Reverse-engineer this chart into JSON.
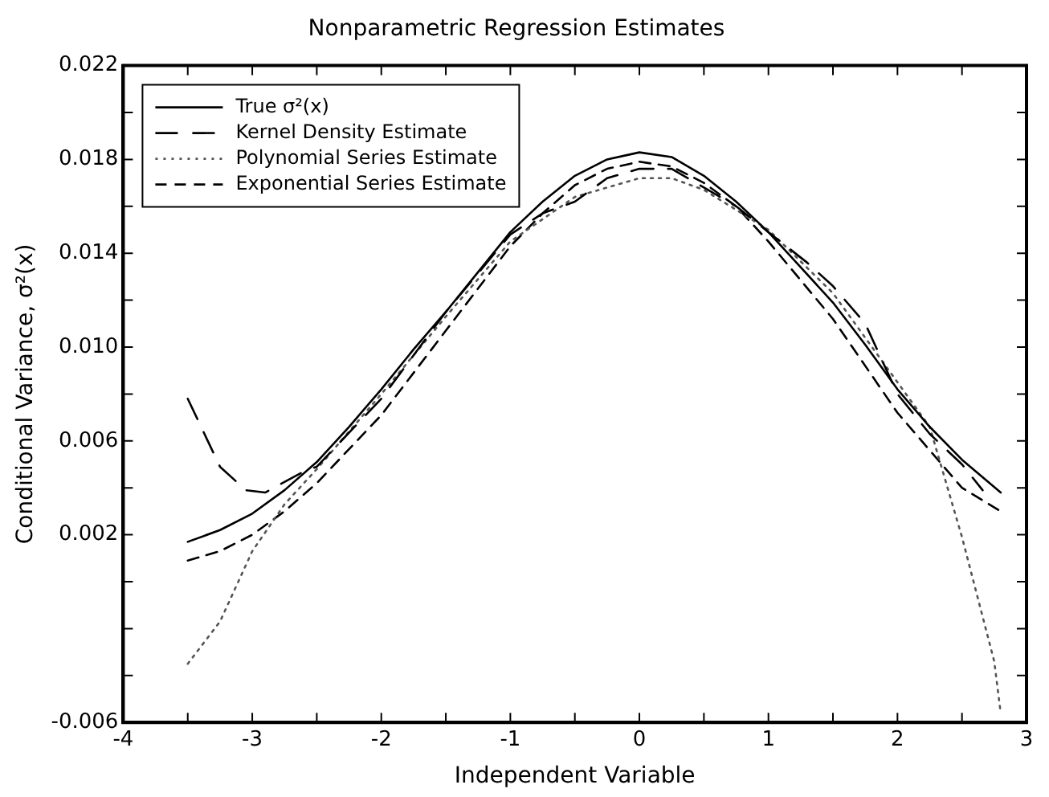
{
  "chart_data": {
    "type": "line",
    "title": "Nonparametric Regression Estimates",
    "xlabel": "Independent Variable",
    "ylabel": "Conditional Variance, σ²(x)",
    "xlim": [
      -4,
      3
    ],
    "xticks": [
      -4,
      {
        "value": -3.5,
        "label": null
      },
      -3,
      {
        "value": -2.5,
        "label": null
      },
      -2,
      {
        "value": -1.5,
        "label": null
      },
      -1,
      {
        "value": -0.5,
        "label": null
      },
      0,
      {
        "value": 0.5,
        "label": null
      },
      1,
      {
        "value": 1.5,
        "label": null
      },
      2,
      {
        "value": 2.5,
        "label": null
      },
      3
    ],
    "ylim": [
      -0.006,
      0.022
    ],
    "yticks": [
      -0.006,
      {
        "value": -0.004,
        "label": null
      },
      {
        "value": -0.002,
        "label": null
      },
      {
        "value": 0,
        "label": null
      },
      0.002,
      {
        "value": 0.004,
        "label": null
      },
      0.006,
      {
        "value": 0.008,
        "label": null
      },
      {
        "value": 0.01,
        "label": "0.010"
      },
      {
        "value": 0.012,
        "label": null
      },
      0.014,
      {
        "value": 0.016,
        "label": null
      },
      0.018,
      {
        "value": 0.02,
        "label": null
      },
      0.022
    ],
    "grid": false,
    "legend": "top left",
    "marker": "none",
    "series": [
      {
        "name": "True σ²(x)",
        "color": "#000000",
        "line_style": "solid",
        "x": [
          -3.5,
          -3.25,
          -3,
          -2.75,
          -2.5,
          -2.25,
          -2,
          -1.75,
          -1.5,
          -1.25,
          -1,
          -0.75,
          -0.5,
          -0.25,
          0,
          0.25,
          0.5,
          0.75,
          1,
          1.25,
          1.5,
          1.75,
          2,
          2.25,
          2.5,
          2.8
        ],
        "values": [
          0.0017,
          0.0022,
          0.0029,
          0.0039,
          0.0051,
          0.0066,
          0.0082,
          0.0099,
          0.0115,
          0.0132,
          0.0149,
          0.0162,
          0.0173,
          0.018,
          0.0183,
          0.0181,
          0.0173,
          0.0162,
          0.0149,
          0.0134,
          0.0119,
          0.0101,
          0.0082,
          0.0066,
          0.0052,
          0.0038
        ]
      },
      {
        "name": "Kernel Density Estimate",
        "color": "#000000",
        "line_style": "dashed",
        "x": [
          -3.5,
          -3.25,
          -3.05,
          -2.9,
          -2.6,
          -2.5,
          -2,
          -1.5,
          -1,
          -0.75,
          -0.5,
          -0.25,
          0,
          0.25,
          0.5,
          0.75,
          1,
          1.3,
          1.5,
          1.75,
          1.9,
          2,
          2.25,
          2.5,
          2.66
        ],
        "values": [
          0.0078,
          0.0049,
          0.0039,
          0.0038,
          0.0047,
          0.0049,
          0.0078,
          0.0115,
          0.0148,
          0.0157,
          0.0162,
          0.0172,
          0.0176,
          0.0176,
          0.0168,
          0.016,
          0.0149,
          0.0136,
          0.0126,
          0.011,
          0.0092,
          0.008,
          0.0063,
          0.005,
          0.0039
        ]
      },
      {
        "name": "Polynomial Series Estimate",
        "color": "#555555",
        "line_style": "dotted",
        "x": [
          -3.5,
          -3.25,
          -3,
          -2.75,
          -2.5,
          -2,
          -1.5,
          -1,
          -0.5,
          0,
          0.25,
          0.5,
          1,
          1.5,
          2,
          2.25,
          2.5,
          2.75,
          2.8
        ],
        "values": [
          -0.0035,
          -0.0017,
          0.0013,
          0.0033,
          0.0048,
          0.008,
          0.0113,
          0.0145,
          0.0164,
          0.0172,
          0.0172,
          0.0167,
          0.015,
          0.0123,
          0.0085,
          0.0066,
          0.0019,
          -0.0034,
          -0.0056
        ]
      },
      {
        "name": "Exponential Series Estimate",
        "color": "#000000",
        "line_style": "dashed",
        "x": [
          -3.5,
          -3.25,
          -3,
          -2.75,
          -2.5,
          -2,
          -1.5,
          -1,
          -0.75,
          -0.5,
          -0.25,
          0,
          0.25,
          0.5,
          0.75,
          1,
          1.5,
          2,
          2.25,
          2.5,
          2.8
        ],
        "values": [
          0.0009,
          0.0013,
          0.002,
          0.003,
          0.0042,
          0.0071,
          0.0107,
          0.0143,
          0.0157,
          0.0169,
          0.0176,
          0.0179,
          0.0177,
          0.017,
          0.016,
          0.0145,
          0.0112,
          0.0072,
          0.0056,
          0.004,
          0.003
        ]
      }
    ]
  }
}
